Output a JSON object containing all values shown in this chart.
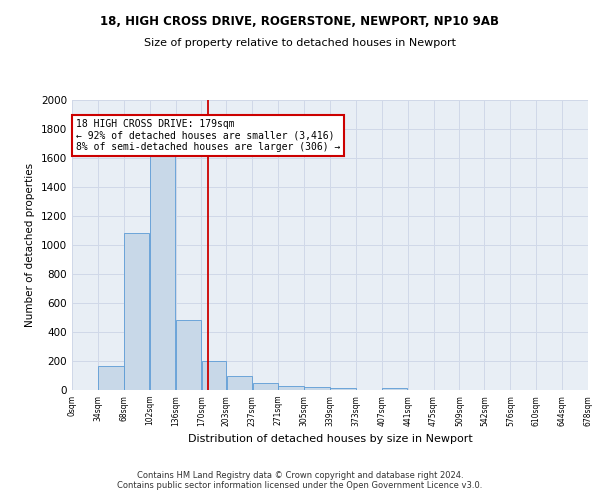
{
  "title1": "18, HIGH CROSS DRIVE, ROGERSTONE, NEWPORT, NP10 9AB",
  "title2": "Size of property relative to detached houses in Newport",
  "xlabel": "Distribution of detached houses by size in Newport",
  "ylabel": "Number of detached properties",
  "footer": "Contains HM Land Registry data © Crown copyright and database right 2024.\nContains public sector information licensed under the Open Government Licence v3.0.",
  "bar_edges": [
    0,
    34,
    68,
    102,
    136,
    170,
    203,
    237,
    271,
    305,
    339,
    373,
    407,
    441,
    475,
    509,
    542,
    576,
    610,
    644,
    678
  ],
  "bar_heights": [
    0,
    165,
    1085,
    1620,
    480,
    200,
    100,
    45,
    30,
    20,
    15,
    0,
    15,
    0,
    0,
    0,
    0,
    0,
    0,
    0
  ],
  "bar_color": "#c8d8e8",
  "bar_edgecolor": "#5b9bd5",
  "grid_color": "#d0d8e8",
  "property_size": 179,
  "redline_color": "#cc0000",
  "annotation_text": "18 HIGH CROSS DRIVE: 179sqm\n← 92% of detached houses are smaller (3,416)\n8% of semi-detached houses are larger (306) →",
  "annotation_box_color": "#cc0000",
  "ylim": [
    0,
    2000
  ],
  "yticks": [
    0,
    200,
    400,
    600,
    800,
    1000,
    1200,
    1400,
    1600,
    1800,
    2000
  ],
  "background_color": "#e8eef5",
  "tick_labels": [
    "0sqm",
    "34sqm",
    "68sqm",
    "102sqm",
    "136sqm",
    "170sqm",
    "203sqm",
    "237sqm",
    "271sqm",
    "305sqm",
    "339sqm",
    "373sqm",
    "407sqm",
    "441sqm",
    "475sqm",
    "509sqm",
    "542sqm",
    "576sqm",
    "610sqm",
    "644sqm",
    "678sqm"
  ]
}
